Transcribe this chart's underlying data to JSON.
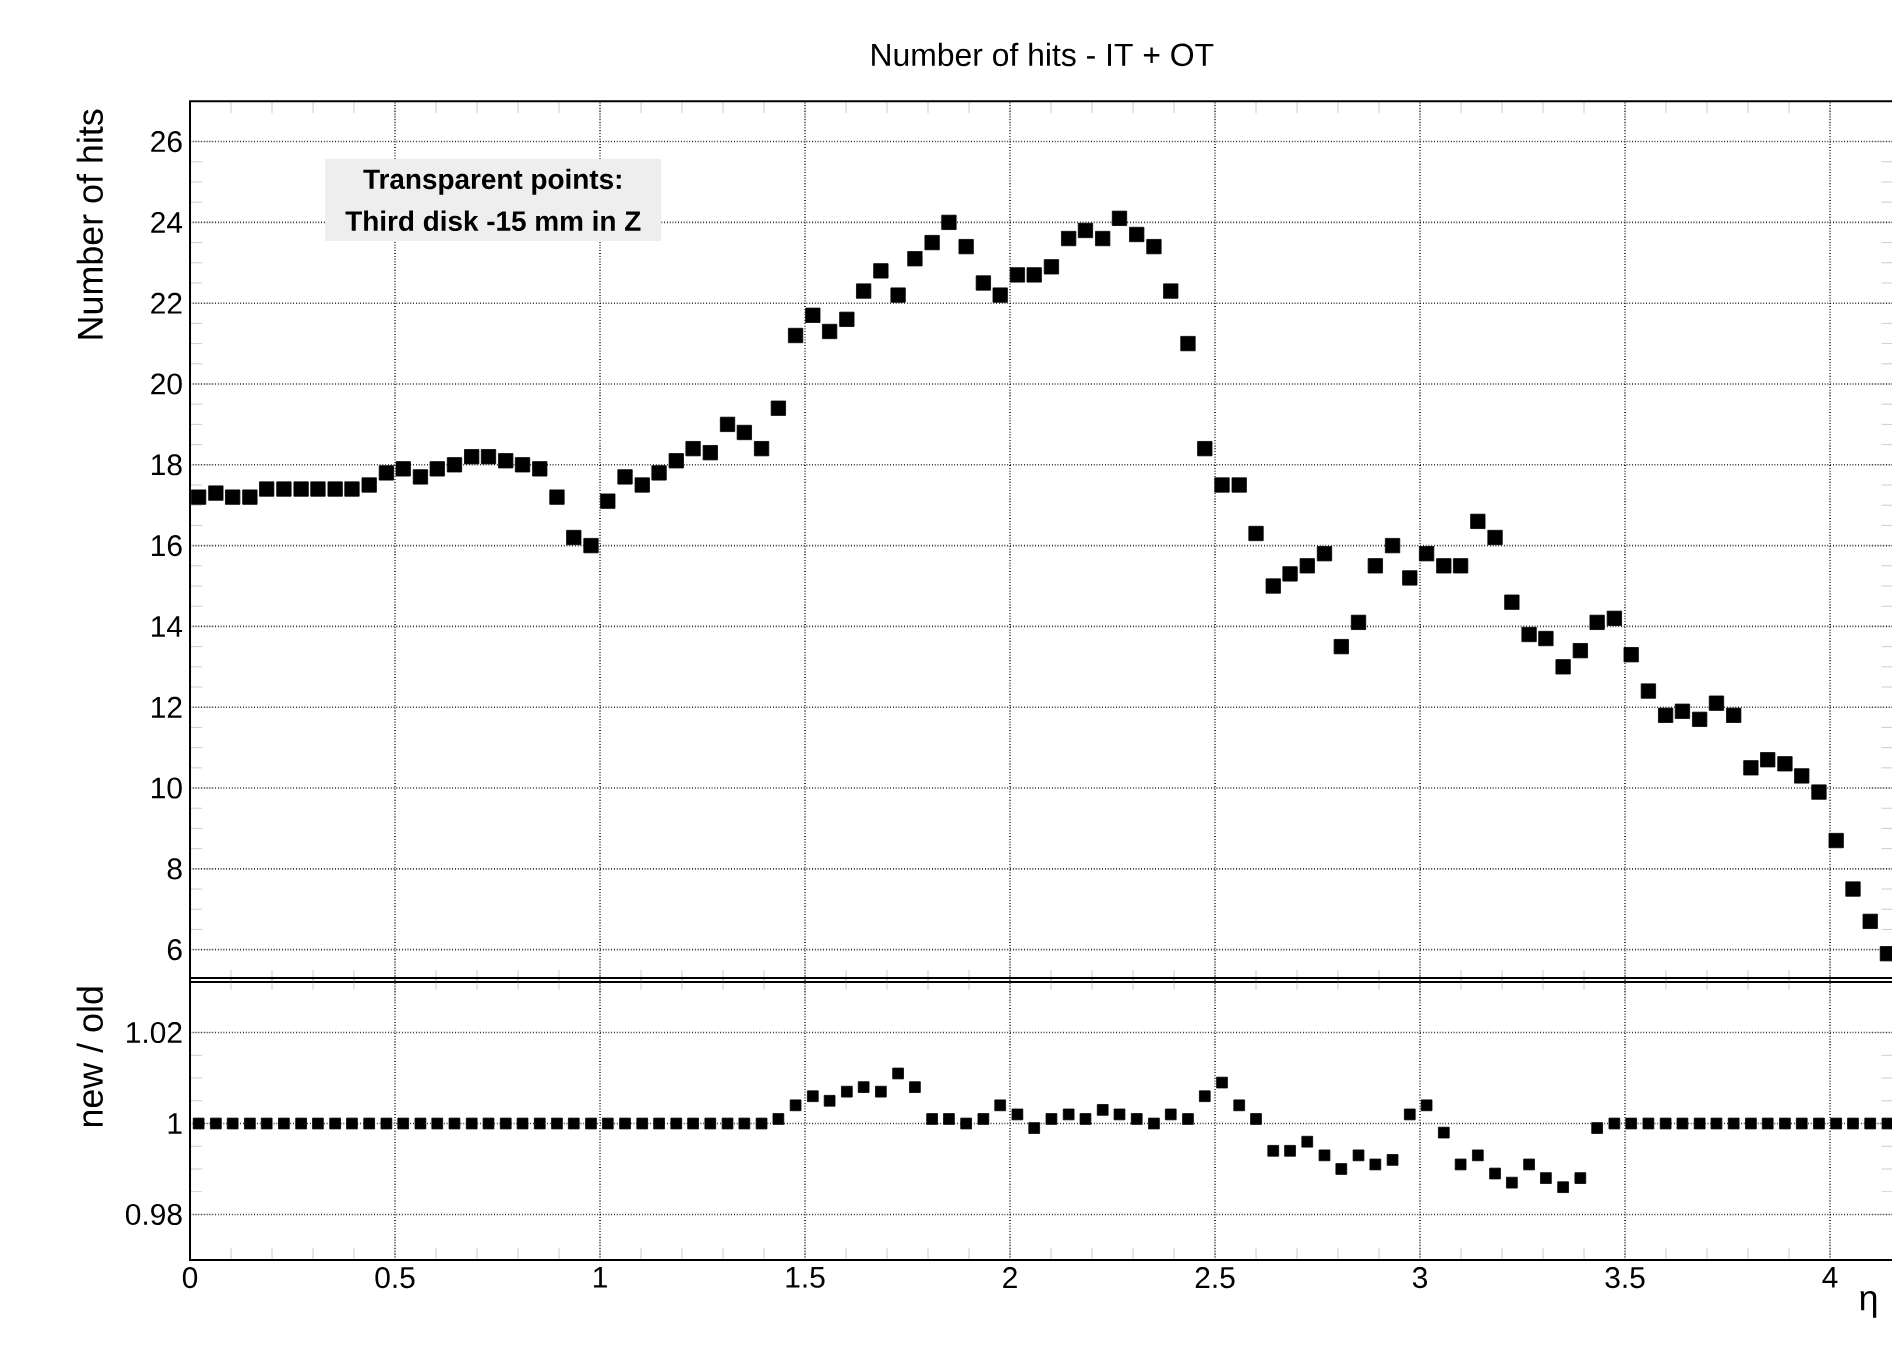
{
  "chart_data": [
    {
      "type": "scatter",
      "title": "Number of hits - IT + OT",
      "ylabel": "Number of hits",
      "annotations": [
        "Transparent points:",
        "Third disk -15 mm in Z"
      ],
      "marker": "square",
      "grid": true,
      "tick_labels": "y",
      "xlim": [
        0,
        4.155
      ],
      "xticks": [
        0,
        0.5,
        1,
        1.5,
        2,
        2.5,
        3,
        3.5,
        4
      ],
      "ylim": [
        5.2,
        27
      ],
      "yticks": [
        6,
        8,
        10,
        12,
        14,
        16,
        18,
        20,
        22,
        24,
        26
      ],
      "x": [
        0.021,
        0.063,
        0.104,
        0.146,
        0.187,
        0.229,
        0.271,
        0.312,
        0.354,
        0.395,
        0.437,
        0.479,
        0.52,
        0.562,
        0.603,
        0.645,
        0.687,
        0.728,
        0.77,
        0.811,
        0.853,
        0.895,
        0.936,
        0.978,
        1.019,
        1.061,
        1.103,
        1.144,
        1.186,
        1.227,
        1.269,
        1.311,
        1.352,
        1.394,
        1.435,
        1.477,
        1.519,
        1.56,
        1.602,
        1.643,
        1.685,
        1.727,
        1.768,
        1.81,
        1.851,
        1.893,
        1.935,
        1.976,
        2.018,
        2.059,
        2.101,
        2.143,
        2.184,
        2.226,
        2.267,
        2.309,
        2.351,
        2.392,
        2.434,
        2.475,
        2.517,
        2.559,
        2.6,
        2.642,
        2.683,
        2.725,
        2.767,
        2.808,
        2.85,
        2.891,
        2.933,
        2.975,
        3.016,
        3.058,
        3.099,
        3.141,
        3.183,
        3.224,
        3.266,
        3.307,
        3.349,
        3.391,
        3.432,
        3.474,
        3.515,
        3.557,
        3.599,
        3.64,
        3.682,
        3.723,
        3.765,
        3.807,
        3.848,
        3.89,
        3.931,
        3.973,
        4.015,
        4.056,
        4.098,
        4.14
      ],
      "series": [
        {
          "color": "#000000",
          "values": [
            17.2,
            17.3,
            17.2,
            17.2,
            17.4,
            17.4,
            17.4,
            17.4,
            17.4,
            17.4,
            17.5,
            17.8,
            17.9,
            17.7,
            17.9,
            18.0,
            18.2,
            18.2,
            18.1,
            18.0,
            17.9,
            17.2,
            16.2,
            16.0,
            17.1,
            17.7,
            17.5,
            17.8,
            18.1,
            18.4,
            18.3,
            19.0,
            18.8,
            18.4,
            19.4,
            21.2,
            21.7,
            21.3,
            21.6,
            22.3,
            22.8,
            22.2,
            23.1,
            23.5,
            24.0,
            23.4,
            22.5,
            22.2,
            22.7,
            22.7,
            22.9,
            23.6,
            23.8,
            23.6,
            24.1,
            23.7,
            23.4,
            22.3,
            21.0,
            18.4,
            17.5,
            17.5,
            16.3,
            15.0,
            15.3,
            15.5,
            15.8,
            13.5,
            14.1,
            15.5,
            16.0,
            15.2,
            15.8,
            15.5,
            15.5,
            16.6,
            16.2,
            14.6,
            13.8,
            13.7,
            13.0,
            13.4,
            14.1,
            14.2,
            13.3,
            12.4,
            11.8,
            11.9,
            11.7,
            12.1,
            11.8,
            10.5,
            10.7,
            10.6,
            10.3,
            9.9,
            8.7,
            7.5,
            6.7,
            5.9
          ]
        }
      ]
    },
    {
      "type": "scatter",
      "xlabel": "η",
      "ylabel": "new / old",
      "marker": "square",
      "grid": true,
      "xlim": [
        0,
        4.155
      ],
      "xticks": [
        0,
        0.5,
        1,
        1.5,
        2,
        2.5,
        3,
        3.5,
        4
      ],
      "ylim": [
        0.97,
        1.032
      ],
      "yticks": [
        0.98,
        1,
        1.02
      ],
      "x": [
        0.021,
        0.063,
        0.104,
        0.146,
        0.187,
        0.229,
        0.271,
        0.312,
        0.354,
        0.395,
        0.437,
        0.479,
        0.52,
        0.562,
        0.603,
        0.645,
        0.687,
        0.728,
        0.77,
        0.811,
        0.853,
        0.895,
        0.936,
        0.978,
        1.019,
        1.061,
        1.103,
        1.144,
        1.186,
        1.227,
        1.269,
        1.311,
        1.352,
        1.394,
        1.435,
        1.477,
        1.519,
        1.56,
        1.602,
        1.643,
        1.685,
        1.727,
        1.768,
        1.81,
        1.851,
        1.893,
        1.935,
        1.976,
        2.018,
        2.059,
        2.101,
        2.143,
        2.184,
        2.226,
        2.267,
        2.309,
        2.351,
        2.392,
        2.434,
        2.475,
        2.517,
        2.559,
        2.6,
        2.642,
        2.683,
        2.725,
        2.767,
        2.808,
        2.85,
        2.891,
        2.933,
        2.975,
        3.016,
        3.058,
        3.099,
        3.141,
        3.183,
        3.224,
        3.266,
        3.307,
        3.349,
        3.391,
        3.432,
        3.474,
        3.515,
        3.557,
        3.599,
        3.64,
        3.682,
        3.723,
        3.765,
        3.807,
        3.848,
        3.89,
        3.931,
        3.973,
        4.015,
        4.056,
        4.098,
        4.14
      ],
      "series": [
        {
          "color": "#000000",
          "values": [
            1.0,
            1.0,
            1.0,
            1.0,
            1.0,
            1.0,
            1.0,
            1.0,
            1.0,
            1.0,
            1.0,
            1.0,
            1.0,
            1.0,
            1.0,
            1.0,
            1.0,
            1.0,
            1.0,
            1.0,
            1.0,
            1.0,
            1.0,
            1.0,
            1.0,
            1.0,
            1.0,
            1.0,
            1.0,
            1.0,
            1.0,
            1.0,
            1.0,
            1.0,
            1.001,
            1.004,
            1.006,
            1.005,
            1.007,
            1.008,
            1.007,
            1.011,
            1.008,
            1.001,
            1.001,
            1.0,
            1.001,
            1.004,
            1.002,
            0.999,
            1.001,
            1.002,
            1.001,
            1.003,
            1.002,
            1.001,
            1.0,
            1.002,
            1.001,
            1.006,
            1.009,
            1.004,
            1.001,
            0.994,
            0.994,
            0.996,
            0.993,
            0.99,
            0.993,
            0.991,
            0.992,
            1.002,
            1.004,
            0.998,
            0.991,
            0.993,
            0.989,
            0.987,
            0.991,
            0.988,
            0.986,
            0.988,
            0.999,
            1.0,
            1.0,
            1.0,
            1.0,
            1.0,
            1.0,
            1.0,
            1.0,
            1.0,
            1.0,
            1.0,
            1.0,
            1.0,
            1.0,
            1.0,
            1.0,
            1.0
          ]
        }
      ]
    }
  ]
}
